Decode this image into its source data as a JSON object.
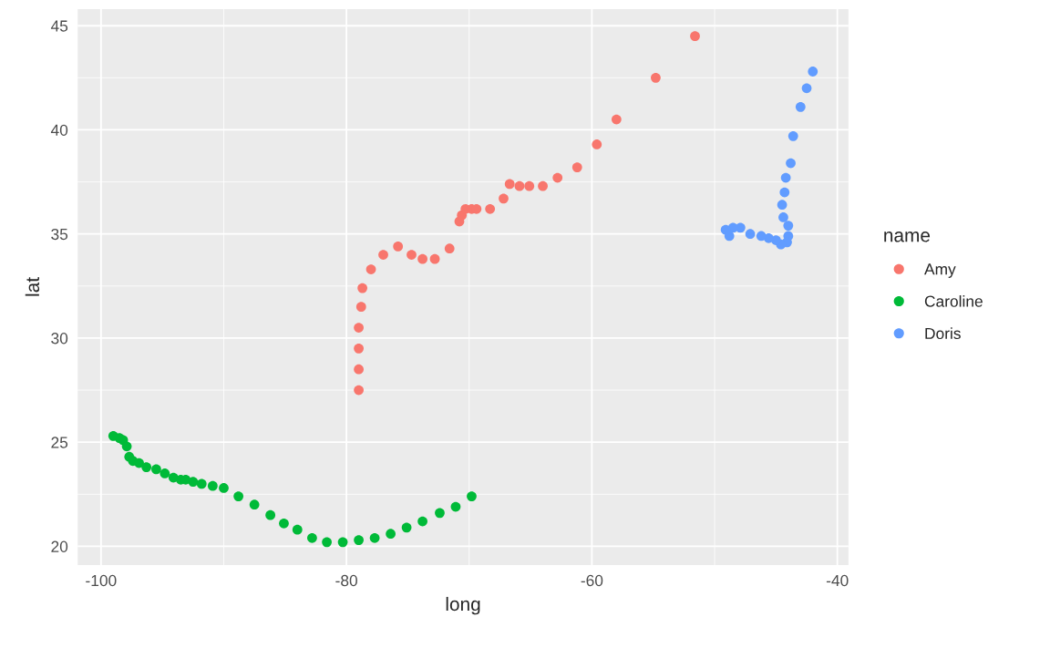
{
  "chart_data": {
    "type": "scatter",
    "xlabel": "long",
    "ylabel": "lat",
    "legend_title": "name",
    "legend": "right",
    "grid": true,
    "marker": "circle",
    "xlim": [
      -101.9,
      -39.1
    ],
    "ylim": [
      19.1,
      45.8
    ],
    "xticks": [
      -100,
      -80,
      -60,
      -40
    ],
    "yticks": [
      20,
      25,
      30,
      35,
      40,
      45
    ],
    "series": [
      {
        "name": "Amy",
        "color": "#F8766D",
        "x": [
          -79.0,
          -79.0,
          -79.0,
          -79.0,
          -78.8,
          -78.7,
          -78.0,
          -77.0,
          -75.8,
          -74.7,
          -73.8,
          -72.8,
          -71.6,
          -70.8,
          -70.6,
          -70.3,
          -69.8,
          -69.4,
          -68.3,
          -67.2,
          -66.7,
          -65.9,
          -65.1,
          -64.0,
          -62.8,
          -61.2,
          -59.6,
          -58.0,
          -54.8,
          -51.6
        ],
        "values": [
          27.5,
          28.5,
          29.5,
          30.5,
          31.5,
          32.4,
          33.3,
          34.0,
          34.4,
          34.0,
          33.8,
          33.8,
          34.3,
          35.6,
          35.9,
          36.2,
          36.2,
          36.2,
          36.2,
          36.7,
          37.4,
          37.3,
          37.3,
          37.3,
          37.7,
          38.2,
          39.3,
          40.5,
          42.5,
          44.5
        ]
      },
      {
        "name": "Caroline",
        "color": "#00BA38",
        "x": [
          -99.0,
          -98.5,
          -98.2,
          -97.9,
          -97.7,
          -97.4,
          -96.9,
          -96.3,
          -95.5,
          -94.8,
          -94.1,
          -93.5,
          -93.1,
          -92.5,
          -91.8,
          -90.9,
          -90.0,
          -88.8,
          -87.5,
          -86.2,
          -85.1,
          -84.0,
          -82.8,
          -81.6,
          -80.3,
          -79.0,
          -77.7,
          -76.4,
          -75.1,
          -73.8,
          -72.4,
          -71.1,
          -69.8
        ],
        "values": [
          25.3,
          25.2,
          25.1,
          24.8,
          24.3,
          24.1,
          24.0,
          23.8,
          23.7,
          23.5,
          23.3,
          23.2,
          23.2,
          23.1,
          23.0,
          22.9,
          22.8,
          22.4,
          22.0,
          21.5,
          21.1,
          20.8,
          20.4,
          20.2,
          20.2,
          20.3,
          20.4,
          20.6,
          20.9,
          21.2,
          21.6,
          21.9,
          22.4
        ]
      },
      {
        "name": "Doris",
        "color": "#619CFF",
        "x": [
          -42.0,
          -42.5,
          -43.0,
          -43.6,
          -43.8,
          -44.2,
          -44.3,
          -44.5,
          -44.4,
          -44.0,
          -44.0,
          -44.1,
          -44.6,
          -45.0,
          -45.6,
          -46.2,
          -47.1,
          -47.9,
          -48.5,
          -48.9,
          -49.1,
          -48.8
        ],
        "values": [
          42.8,
          42.0,
          41.1,
          39.7,
          38.4,
          37.7,
          37.0,
          36.4,
          35.8,
          35.4,
          34.9,
          34.6,
          34.5,
          34.7,
          34.8,
          34.9,
          35.0,
          35.3,
          35.3,
          null,
          35.2,
          34.9
        ]
      }
    ]
  }
}
